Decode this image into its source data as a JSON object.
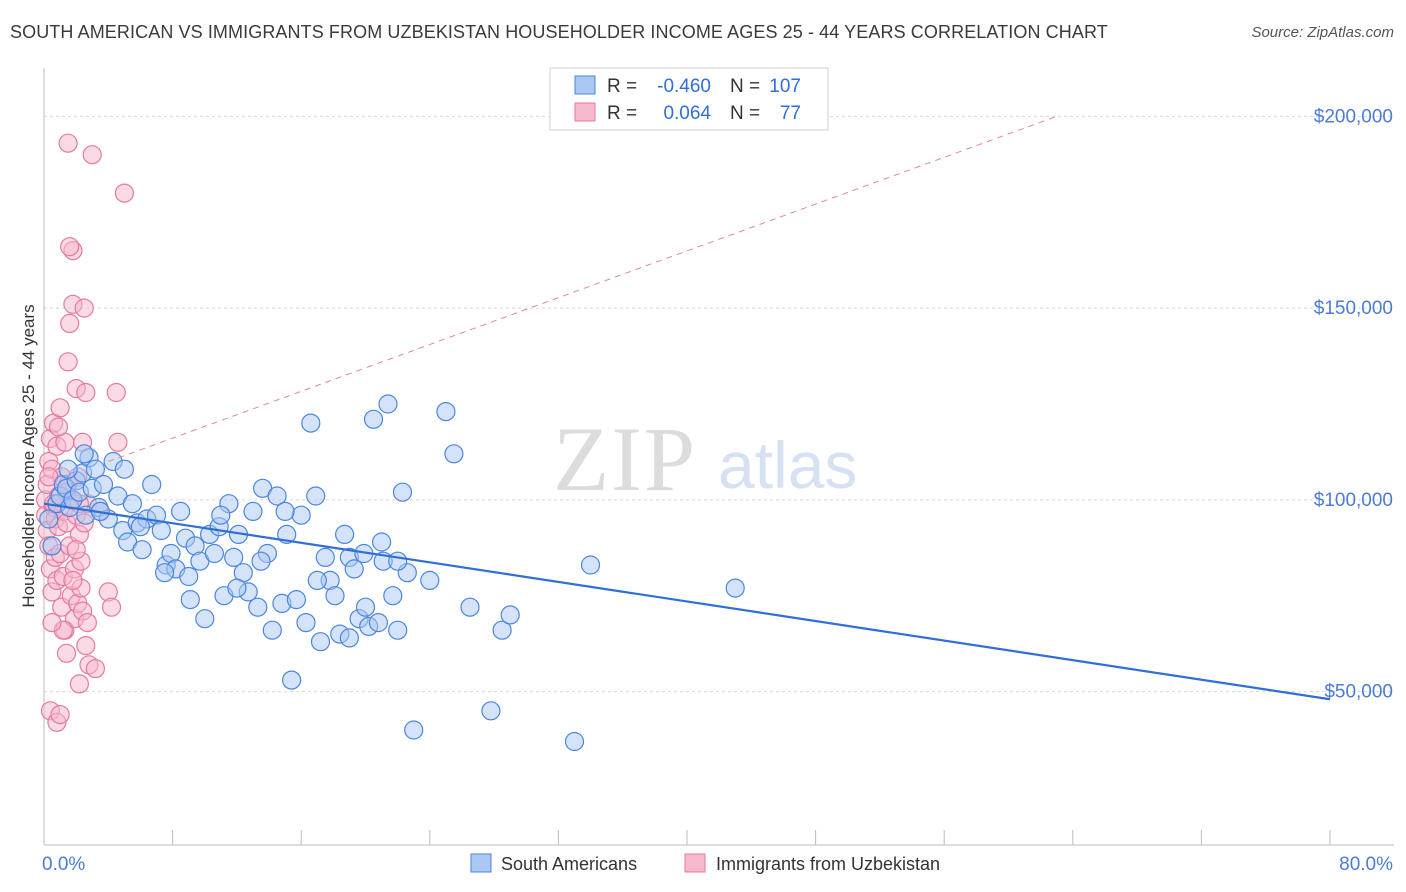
{
  "header": {
    "title": "SOUTH AMERICAN VS IMMIGRANTS FROM UZBEKISTAN HOUSEHOLDER INCOME AGES 25 - 44 YEARS CORRELATION CHART",
    "source": "Source: ZipAtlas.com"
  },
  "watermark": {
    "zip": "ZIP",
    "atlas": "atlas"
  },
  "colors": {
    "blue": "#4a86e0",
    "blue_fill": "#aac8f3",
    "blue_line": "#2f6fd6",
    "pink": "#e8799e",
    "pink_fill": "#f6b8cc",
    "pink_line": "#e4869f",
    "axis_text": "#4a7cd8",
    "grid": "#d8d8d8"
  },
  "legend_top": [
    {
      "r_label": "R =",
      "r_value": "-0.460",
      "n_label": "N =",
      "n_value": "107",
      "color": "blue"
    },
    {
      "r_label": "R =",
      "r_value": "0.064",
      "n_label": "N =",
      "n_value": "77",
      "color": "pink"
    }
  ],
  "legend_bottom": [
    {
      "label": "South Americans",
      "color": "blue"
    },
    {
      "label": "Immigrants from Uzbekistan",
      "color": "pink"
    }
  ],
  "chart_data": {
    "type": "scatter",
    "title": "SOUTH AMERICAN VS IMMIGRANTS FROM UZBEKISTAN HOUSEHOLDER INCOME AGES 25 - 44 YEARS CORRELATION CHART",
    "xlabel": "",
    "ylabel": "Householder Income Ages 25 - 44 years",
    "xlim": [
      0,
      80
    ],
    "ylim": [
      10000,
      210000
    ],
    "x_tick_labels": [
      "0.0%",
      "80.0%"
    ],
    "y_ticks": [
      50000,
      100000,
      150000,
      200000
    ],
    "y_tick_labels": [
      "$50,000",
      "$100,000",
      "$150,000",
      "$200,000"
    ],
    "grid": true,
    "legend_position": "top-center",
    "series": [
      {
        "name": "South Americans",
        "color": "blue",
        "r": -0.46,
        "n": 107,
        "trend": {
          "x": [
            0,
            80
          ],
          "y": [
            99000,
            48000
          ],
          "style": "solid"
        },
        "points": [
          [
            0.3,
            95000
          ],
          [
            0.5,
            88000
          ],
          [
            0.8,
            99000
          ],
          [
            1.0,
            101000
          ],
          [
            1.2,
            104000
          ],
          [
            1.4,
            103000
          ],
          [
            1.6,
            98000
          ],
          [
            1.8,
            100000
          ],
          [
            2.0,
            105000
          ],
          [
            2.2,
            102000
          ],
          [
            2.4,
            107000
          ],
          [
            2.6,
            96000
          ],
          [
            2.8,
            111000
          ],
          [
            3.0,
            103000
          ],
          [
            3.2,
            108000
          ],
          [
            3.4,
            98000
          ],
          [
            3.7,
            104000
          ],
          [
            4.0,
            95000
          ],
          [
            4.3,
            110000
          ],
          [
            4.6,
            101000
          ],
          [
            4.9,
            92000
          ],
          [
            5.2,
            89000
          ],
          [
            5.5,
            99000
          ],
          [
            5.8,
            94000
          ],
          [
            6.1,
            87000
          ],
          [
            6.4,
            95000
          ],
          [
            6.7,
            104000
          ],
          [
            7.0,
            96000
          ],
          [
            7.3,
            92000
          ],
          [
            7.6,
            83000
          ],
          [
            7.9,
            86000
          ],
          [
            8.2,
            82000
          ],
          [
            8.5,
            97000
          ],
          [
            8.8,
            90000
          ],
          [
            9.1,
            74000
          ],
          [
            9.4,
            88000
          ],
          [
            9.7,
            84000
          ],
          [
            10.0,
            69000
          ],
          [
            10.3,
            91000
          ],
          [
            10.6,
            86000
          ],
          [
            10.9,
            93000
          ],
          [
            11.2,
            75000
          ],
          [
            11.5,
            99000
          ],
          [
            11.8,
            85000
          ],
          [
            12.1,
            91000
          ],
          [
            12.4,
            81000
          ],
          [
            12.7,
            76000
          ],
          [
            13.0,
            97000
          ],
          [
            13.3,
            72000
          ],
          [
            13.6,
            103000
          ],
          [
            13.9,
            86000
          ],
          [
            14.2,
            66000
          ],
          [
            14.5,
            101000
          ],
          [
            14.8,
            73000
          ],
          [
            15.1,
            91000
          ],
          [
            15.4,
            53000
          ],
          [
            15.7,
            74000
          ],
          [
            16.0,
            96000
          ],
          [
            16.3,
            68000
          ],
          [
            16.6,
            120000
          ],
          [
            16.9,
            101000
          ],
          [
            17.2,
            63000
          ],
          [
            17.5,
            85000
          ],
          [
            17.8,
            79000
          ],
          [
            18.1,
            75000
          ],
          [
            18.4,
            65000
          ],
          [
            18.7,
            91000
          ],
          [
            19.0,
            85000
          ],
          [
            19.3,
            82000
          ],
          [
            19.6,
            69000
          ],
          [
            19.9,
            86000
          ],
          [
            20.2,
            67000
          ],
          [
            20.5,
            121000
          ],
          [
            20.8,
            68000
          ],
          [
            21.1,
            84000
          ],
          [
            21.4,
            125000
          ],
          [
            21.7,
            75000
          ],
          [
            22.0,
            66000
          ],
          [
            22.3,
            102000
          ],
          [
            22.6,
            81000
          ],
          [
            23.0,
            40000
          ],
          [
            25.0,
            123000
          ],
          [
            25.5,
            112000
          ],
          [
            26.5,
            72000
          ],
          [
            27.8,
            45000
          ],
          [
            28.5,
            66000
          ],
          [
            29.0,
            70000
          ],
          [
            33.0,
            37000
          ],
          [
            34.0,
            83000
          ],
          [
            43.0,
            77000
          ],
          [
            1.5,
            108000
          ],
          [
            2.5,
            112000
          ],
          [
            3.5,
            97000
          ],
          [
            5.0,
            108000
          ],
          [
            6.0,
            93000
          ],
          [
            7.5,
            81000
          ],
          [
            9.0,
            80000
          ],
          [
            11.0,
            96000
          ],
          [
            12.0,
            77000
          ],
          [
            13.5,
            84000
          ],
          [
            15.0,
            97000
          ],
          [
            17.0,
            79000
          ],
          [
            19.0,
            64000
          ],
          [
            20.0,
            72000
          ],
          [
            21.0,
            89000
          ],
          [
            22.0,
            84000
          ],
          [
            24.0,
            79000
          ]
        ]
      },
      {
        "name": "Immigrants from Uzbekistan",
        "color": "pink",
        "r": 0.064,
        "n": 77,
        "trend": {
          "x": [
            4,
            63
          ],
          "y": [
            110000,
            200000
          ],
          "style": "dashed"
        },
        "points": [
          [
            0.1,
            100000
          ],
          [
            0.1,
            96000
          ],
          [
            0.2,
            104000
          ],
          [
            0.2,
            92000
          ],
          [
            0.3,
            110000
          ],
          [
            0.3,
            88000
          ],
          [
            0.4,
            116000
          ],
          [
            0.4,
            82000
          ],
          [
            0.5,
            108000
          ],
          [
            0.5,
            76000
          ],
          [
            0.6,
            120000
          ],
          [
            0.6,
            98000
          ],
          [
            0.7,
            95000
          ],
          [
            0.7,
            85000
          ],
          [
            0.8,
            114000
          ],
          [
            0.8,
            79000
          ],
          [
            0.9,
            101000
          ],
          [
            0.9,
            93000
          ],
          [
            1.0,
            124000
          ],
          [
            1.0,
            86000
          ],
          [
            1.1,
            106000
          ],
          [
            1.1,
            72000
          ],
          [
            1.2,
            97000
          ],
          [
            1.2,
            80000
          ],
          [
            1.3,
            115000
          ],
          [
            1.3,
            66000
          ],
          [
            1.4,
            94000
          ],
          [
            1.4,
            60000
          ],
          [
            1.5,
            136000
          ],
          [
            1.5,
            104000
          ],
          [
            1.6,
            88000
          ],
          [
            1.6,
            146000
          ],
          [
            1.7,
            100000
          ],
          [
            1.7,
            75000
          ],
          [
            1.8,
            151000
          ],
          [
            1.8,
            165000
          ],
          [
            1.9,
            82000
          ],
          [
            1.9,
            69000
          ],
          [
            2.0,
            129000
          ],
          [
            2.0,
            96000
          ],
          [
            2.1,
            106000
          ],
          [
            2.1,
            73000
          ],
          [
            2.2,
            91000
          ],
          [
            2.2,
            52000
          ],
          [
            2.3,
            77000
          ],
          [
            2.3,
            84000
          ],
          [
            2.4,
            115000
          ],
          [
            2.4,
            71000
          ],
          [
            2.5,
            150000
          ],
          [
            2.5,
            94000
          ],
          [
            2.6,
            128000
          ],
          [
            2.6,
            62000
          ],
          [
            2.7,
            99000
          ],
          [
            2.7,
            68000
          ],
          [
            3.0,
            190000
          ],
          [
            3.5,
            97000
          ],
          [
            4.0,
            76000
          ],
          [
            4.2,
            72000
          ],
          [
            4.5,
            128000
          ],
          [
            4.6,
            115000
          ],
          [
            5.0,
            180000
          ],
          [
            1.5,
            193000
          ],
          [
            1.6,
            166000
          ],
          [
            0.4,
            45000
          ],
          [
            0.8,
            42000
          ],
          [
            1.0,
            44000
          ],
          [
            1.2,
            66000
          ],
          [
            0.5,
            68000
          ],
          [
            0.6,
            99000
          ],
          [
            1.8,
            79000
          ],
          [
            2.0,
            87000
          ],
          [
            2.8,
            57000
          ],
          [
            3.2,
            56000
          ],
          [
            0.3,
            106000
          ],
          [
            0.9,
            119000
          ],
          [
            1.4,
            102000
          ],
          [
            2.2,
            99000
          ]
        ]
      }
    ]
  }
}
